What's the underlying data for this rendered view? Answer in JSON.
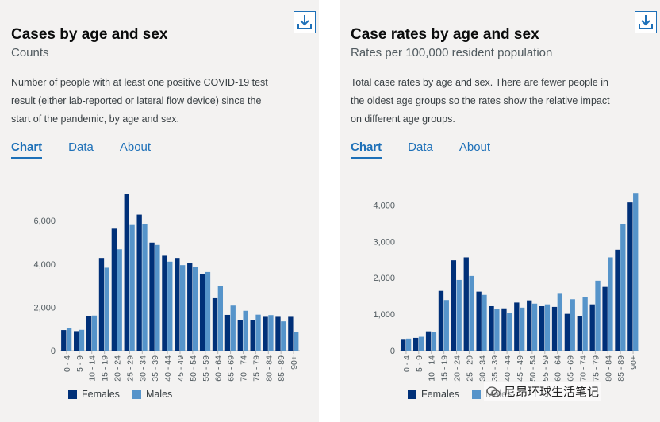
{
  "colors": {
    "female": "#003078",
    "male": "#5694ca",
    "link": "#1d70b8"
  },
  "tabs": [
    "Chart",
    "Data",
    "About"
  ],
  "left": {
    "title": "Cases by age and sex",
    "subtitle": "Counts",
    "description": "Number of people with at least one positive COVID-19 test result (either lab-reported or lateral flow device) since the start of the pandemic, by age and sex."
  },
  "right": {
    "title": "Case rates by age and sex",
    "subtitle": "Rates per 100,000 resident population",
    "description": "Total case rates by age and sex. There are fewer people in the oldest age groups so the rates show the relative impact on different age groups."
  },
  "legend": {
    "females": "Females",
    "males": "Males"
  },
  "watermark": "尼昂环球生活笔记",
  "chart_data": [
    {
      "type": "bar",
      "title": "Cases by age and sex",
      "categories": [
        "0 - 4",
        "5 - 9",
        "10 - 14",
        "15 - 19",
        "20 - 24",
        "25 - 29",
        "30 - 34",
        "35 - 39",
        "40 - 44",
        "45 - 49",
        "50 - 54",
        "55 - 59",
        "60 - 64",
        "65 - 69",
        "70 - 74",
        "75 - 79",
        "80 - 84",
        "85 - 89",
        "90+"
      ],
      "yticks": [
        0,
        2000,
        4000,
        6000
      ],
      "ytick_labels": [
        "0",
        "2,000",
        "4,000",
        "6,000"
      ],
      "ylim": [
        0,
        7400
      ],
      "series": [
        {
          "name": "Females",
          "values": [
            950,
            900,
            1580,
            4280,
            5630,
            7230,
            6280,
            4990,
            4380,
            4280,
            4060,
            3520,
            2420,
            1650,
            1400,
            1400,
            1560,
            1560,
            1560
          ]
        },
        {
          "name": "Males",
          "values": [
            1060,
            960,
            1620,
            3830,
            4680,
            5800,
            5860,
            4880,
            4110,
            3950,
            3860,
            3630,
            2990,
            2080,
            1840,
            1660,
            1640,
            1350,
            850
          ]
        }
      ]
    },
    {
      "type": "bar",
      "title": "Case rates by age and sex",
      "categories": [
        "0 - 4",
        "5 - 9",
        "10 - 14",
        "15 - 19",
        "20 - 24",
        "25 - 29",
        "30 - 34",
        "35 - 39",
        "40 - 44",
        "45 - 49",
        "50 - 54",
        "55 - 59",
        "60 - 64",
        "65 - 69",
        "70 - 74",
        "75 - 79",
        "80 - 84",
        "85 - 89",
        "90+"
      ],
      "yticks": [
        0,
        1000,
        2000,
        3000,
        4000
      ],
      "ytick_labels": [
        "0",
        "1,000",
        "2,000",
        "3,000",
        "4,000"
      ],
      "ylim": [
        0,
        4400
      ],
      "series": [
        {
          "name": "Females",
          "values": [
            320,
            350,
            530,
            1640,
            2480,
            2560,
            1620,
            1220,
            1160,
            1320,
            1380,
            1220,
            1200,
            1010,
            940,
            1270,
            1750,
            2770,
            4070
          ]
        },
        {
          "name": "Males",
          "values": [
            330,
            380,
            520,
            1390,
            1940,
            2050,
            1530,
            1150,
            1030,
            1180,
            1290,
            1270,
            1560,
            1410,
            1460,
            1920,
            2560,
            3470,
            4330
          ]
        }
      ]
    }
  ]
}
